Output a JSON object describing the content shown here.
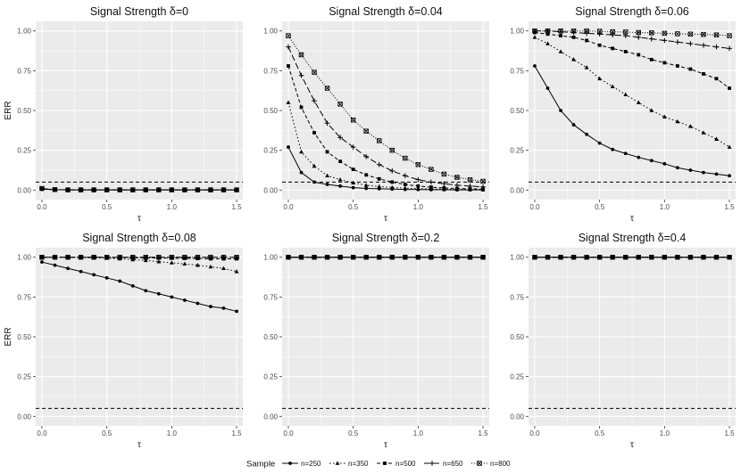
{
  "chart_data": {
    "type": "line",
    "facet_layout": "3 columns x 2 rows",
    "x_label": "τ",
    "y_label": "ERR",
    "x_range": [
      0,
      1.5
    ],
    "y_range": [
      0,
      1
    ],
    "x_ticks": [
      "0.0",
      "0.5",
      "1.0",
      "1.5"
    ],
    "y_ticks": [
      "0.00",
      "0.25",
      "0.50",
      "0.75",
      "1.00"
    ],
    "x": [
      0.0,
      0.1,
      0.2,
      0.3,
      0.4,
      0.5,
      0.6,
      0.7,
      0.8,
      0.9,
      1.0,
      1.1,
      1.2,
      1.3,
      1.4,
      1.5
    ],
    "reference_line": {
      "y": 0.05,
      "style": "dashed"
    },
    "legend": {
      "title": "Sample",
      "position": "bottom",
      "entries": [
        "n=250",
        "n=350",
        "n=500",
        "n=650",
        "n=800"
      ]
    },
    "panels": [
      {
        "title": "Signal Strength δ=0",
        "series": [
          {
            "name": "n=250",
            "values": [
              0.005,
              0.002,
              0.001,
              0.001,
              0.001,
              0.001,
              0.001,
              0.001,
              0.001,
              0.001,
              0.001,
              0.001,
              0.001,
              0.001,
              0.001,
              0.001
            ]
          },
          {
            "name": "n=350",
            "values": [
              0.006,
              0.002,
              0.001,
              0.001,
              0.001,
              0.001,
              0.001,
              0.001,
              0.001,
              0.001,
              0.001,
              0.001,
              0.001,
              0.001,
              0.001,
              0.001
            ]
          },
          {
            "name": "n=500",
            "values": [
              0.007,
              0.002,
              0.001,
              0.001,
              0.001,
              0.001,
              0.001,
              0.001,
              0.001,
              0.001,
              0.001,
              0.001,
              0.001,
              0.001,
              0.001,
              0.001
            ]
          },
          {
            "name": "n=650",
            "values": [
              0.008,
              0.003,
              0.001,
              0.001,
              0.001,
              0.001,
              0.001,
              0.001,
              0.001,
              0.001,
              0.001,
              0.001,
              0.001,
              0.001,
              0.001,
              0.001
            ]
          },
          {
            "name": "n=800",
            "values": [
              0.01,
              0.003,
              0.001,
              0.001,
              0.001,
              0.001,
              0.001,
              0.001,
              0.001,
              0.001,
              0.001,
              0.001,
              0.001,
              0.001,
              0.001,
              0.001
            ]
          }
        ]
      },
      {
        "title": "Signal Strength δ=0.04",
        "series": [
          {
            "name": "n=250",
            "values": [
              0.27,
              0.11,
              0.05,
              0.035,
              0.025,
              0.015,
              0.01,
              0.008,
              0.006,
              0.004,
              0.003,
              0.002,
              0.002,
              0.001,
              0.001,
              0.001
            ]
          },
          {
            "name": "n=350",
            "values": [
              0.55,
              0.24,
              0.15,
              0.09,
              0.065,
              0.045,
              0.03,
              0.022,
              0.016,
              0.012,
              0.009,
              0.007,
              0.005,
              0.004,
              0.003,
              0.002
            ]
          },
          {
            "name": "n=500",
            "values": [
              0.78,
              0.52,
              0.36,
              0.24,
              0.18,
              0.13,
              0.095,
              0.07,
              0.05,
              0.035,
              0.025,
              0.018,
              0.013,
              0.01,
              0.008,
              0.006
            ]
          },
          {
            "name": "n=650",
            "values": [
              0.9,
              0.72,
              0.56,
              0.42,
              0.33,
              0.27,
              0.21,
              0.16,
              0.12,
              0.09,
              0.065,
              0.05,
              0.04,
              0.03,
              0.025,
              0.02
            ]
          },
          {
            "name": "n=800",
            "values": [
              0.97,
              0.85,
              0.74,
              0.64,
              0.54,
              0.44,
              0.37,
              0.31,
              0.25,
              0.2,
              0.16,
              0.13,
              0.1,
              0.08,
              0.065,
              0.055
            ]
          }
        ]
      },
      {
        "title": "Signal Strength δ=0.06",
        "series": [
          {
            "name": "n=250",
            "values": [
              0.78,
              0.64,
              0.5,
              0.41,
              0.35,
              0.295,
              0.255,
              0.23,
              0.205,
              0.185,
              0.165,
              0.14,
              0.125,
              0.11,
              0.1,
              0.09
            ]
          },
          {
            "name": "n=350",
            "values": [
              0.96,
              0.92,
              0.87,
              0.82,
              0.77,
              0.7,
              0.65,
              0.6,
              0.55,
              0.5,
              0.46,
              0.43,
              0.4,
              0.36,
              0.32,
              0.27
            ]
          },
          {
            "name": "n=500",
            "values": [
              0.99,
              0.98,
              0.97,
              0.96,
              0.94,
              0.91,
              0.89,
              0.87,
              0.85,
              0.82,
              0.8,
              0.78,
              0.76,
              0.73,
              0.7,
              0.64
            ]
          },
          {
            "name": "n=650",
            "values": [
              1.0,
              1.0,
              0.995,
              0.99,
              0.985,
              0.98,
              0.975,
              0.97,
              0.96,
              0.95,
              0.94,
              0.93,
              0.92,
              0.91,
              0.9,
              0.89
            ]
          },
          {
            "name": "n=800",
            "values": [
              1.0,
              1.0,
              1.0,
              1.0,
              1.0,
              0.998,
              0.995,
              0.993,
              0.99,
              0.988,
              0.985,
              0.982,
              0.98,
              0.978,
              0.975,
              0.97
            ]
          }
        ]
      },
      {
        "title": "Signal Strength δ=0.08",
        "series": [
          {
            "name": "n=250",
            "values": [
              0.97,
              0.95,
              0.93,
              0.91,
              0.89,
              0.87,
              0.85,
              0.82,
              0.79,
              0.77,
              0.75,
              0.73,
              0.71,
              0.69,
              0.68,
              0.66
            ]
          },
          {
            "name": "n=350",
            "values": [
              1.0,
              1.0,
              0.999,
              0.998,
              0.996,
              0.994,
              0.99,
              0.985,
              0.98,
              0.972,
              0.965,
              0.958,
              0.95,
              0.94,
              0.93,
              0.91
            ]
          },
          {
            "name": "n=500",
            "values": [
              1.0,
              1.0,
              1.0,
              1.0,
              1.0,
              0.999,
              0.998,
              0.997,
              0.996,
              0.995,
              0.994,
              0.993,
              0.992,
              0.99,
              0.99,
              0.99
            ]
          },
          {
            "name": "n=650",
            "values": [
              1.0,
              1.0,
              1.0,
              1.0,
              1.0,
              1.0,
              1.0,
              1.0,
              1.0,
              1.0,
              1.0,
              1.0,
              1.0,
              1.0,
              1.0,
              1.0
            ]
          },
          {
            "name": "n=800",
            "values": [
              1.0,
              1.0,
              1.0,
              1.0,
              1.0,
              1.0,
              1.0,
              1.0,
              1.0,
              1.0,
              1.0,
              1.0,
              1.0,
              1.0,
              1.0,
              1.0
            ]
          }
        ]
      },
      {
        "title": "Signal Strength δ=0.2",
        "series": [
          {
            "name": "n=250",
            "values": [
              1.0,
              1.0,
              1.0,
              1.0,
              1.0,
              1.0,
              1.0,
              1.0,
              1.0,
              1.0,
              1.0,
              1.0,
              1.0,
              1.0,
              1.0,
              1.0
            ]
          },
          {
            "name": "n=350",
            "values": [
              1.0,
              1.0,
              1.0,
              1.0,
              1.0,
              1.0,
              1.0,
              1.0,
              1.0,
              1.0,
              1.0,
              1.0,
              1.0,
              1.0,
              1.0,
              1.0
            ]
          },
          {
            "name": "n=500",
            "values": [
              1.0,
              1.0,
              1.0,
              1.0,
              1.0,
              1.0,
              1.0,
              1.0,
              1.0,
              1.0,
              1.0,
              1.0,
              1.0,
              1.0,
              1.0,
              1.0
            ]
          },
          {
            "name": "n=650",
            "values": [
              1.0,
              1.0,
              1.0,
              1.0,
              1.0,
              1.0,
              1.0,
              1.0,
              1.0,
              1.0,
              1.0,
              1.0,
              1.0,
              1.0,
              1.0,
              1.0
            ]
          },
          {
            "name": "n=800",
            "values": [
              1.0,
              1.0,
              1.0,
              1.0,
              1.0,
              1.0,
              1.0,
              1.0,
              1.0,
              1.0,
              1.0,
              1.0,
              1.0,
              1.0,
              1.0,
              1.0
            ]
          }
        ]
      },
      {
        "title": "Signal Strength δ=0.4",
        "series": [
          {
            "name": "n=250",
            "values": [
              1.0,
              1.0,
              1.0,
              1.0,
              1.0,
              1.0,
              1.0,
              1.0,
              1.0,
              1.0,
              1.0,
              1.0,
              1.0,
              1.0,
              1.0,
              1.0
            ]
          },
          {
            "name": "n=350",
            "values": [
              1.0,
              1.0,
              1.0,
              1.0,
              1.0,
              1.0,
              1.0,
              1.0,
              1.0,
              1.0,
              1.0,
              1.0,
              1.0,
              1.0,
              1.0,
              1.0
            ]
          },
          {
            "name": "n=500",
            "values": [
              1.0,
              1.0,
              1.0,
              1.0,
              1.0,
              1.0,
              1.0,
              1.0,
              1.0,
              1.0,
              1.0,
              1.0,
              1.0,
              1.0,
              1.0,
              1.0
            ]
          },
          {
            "name": "n=650",
            "values": [
              1.0,
              1.0,
              1.0,
              1.0,
              1.0,
              1.0,
              1.0,
              1.0,
              1.0,
              1.0,
              1.0,
              1.0,
              1.0,
              1.0,
              1.0,
              1.0
            ]
          },
          {
            "name": "n=800",
            "values": [
              1.0,
              1.0,
              1.0,
              1.0,
              1.0,
              1.0,
              1.0,
              1.0,
              1.0,
              1.0,
              1.0,
              1.0,
              1.0,
              1.0,
              1.0,
              1.0
            ]
          }
        ]
      }
    ]
  },
  "colors": {
    "panel_background": "#ebebeb",
    "grid": "#ffffff",
    "ink": "#000000",
    "tick_text": "#4d4d4d"
  }
}
